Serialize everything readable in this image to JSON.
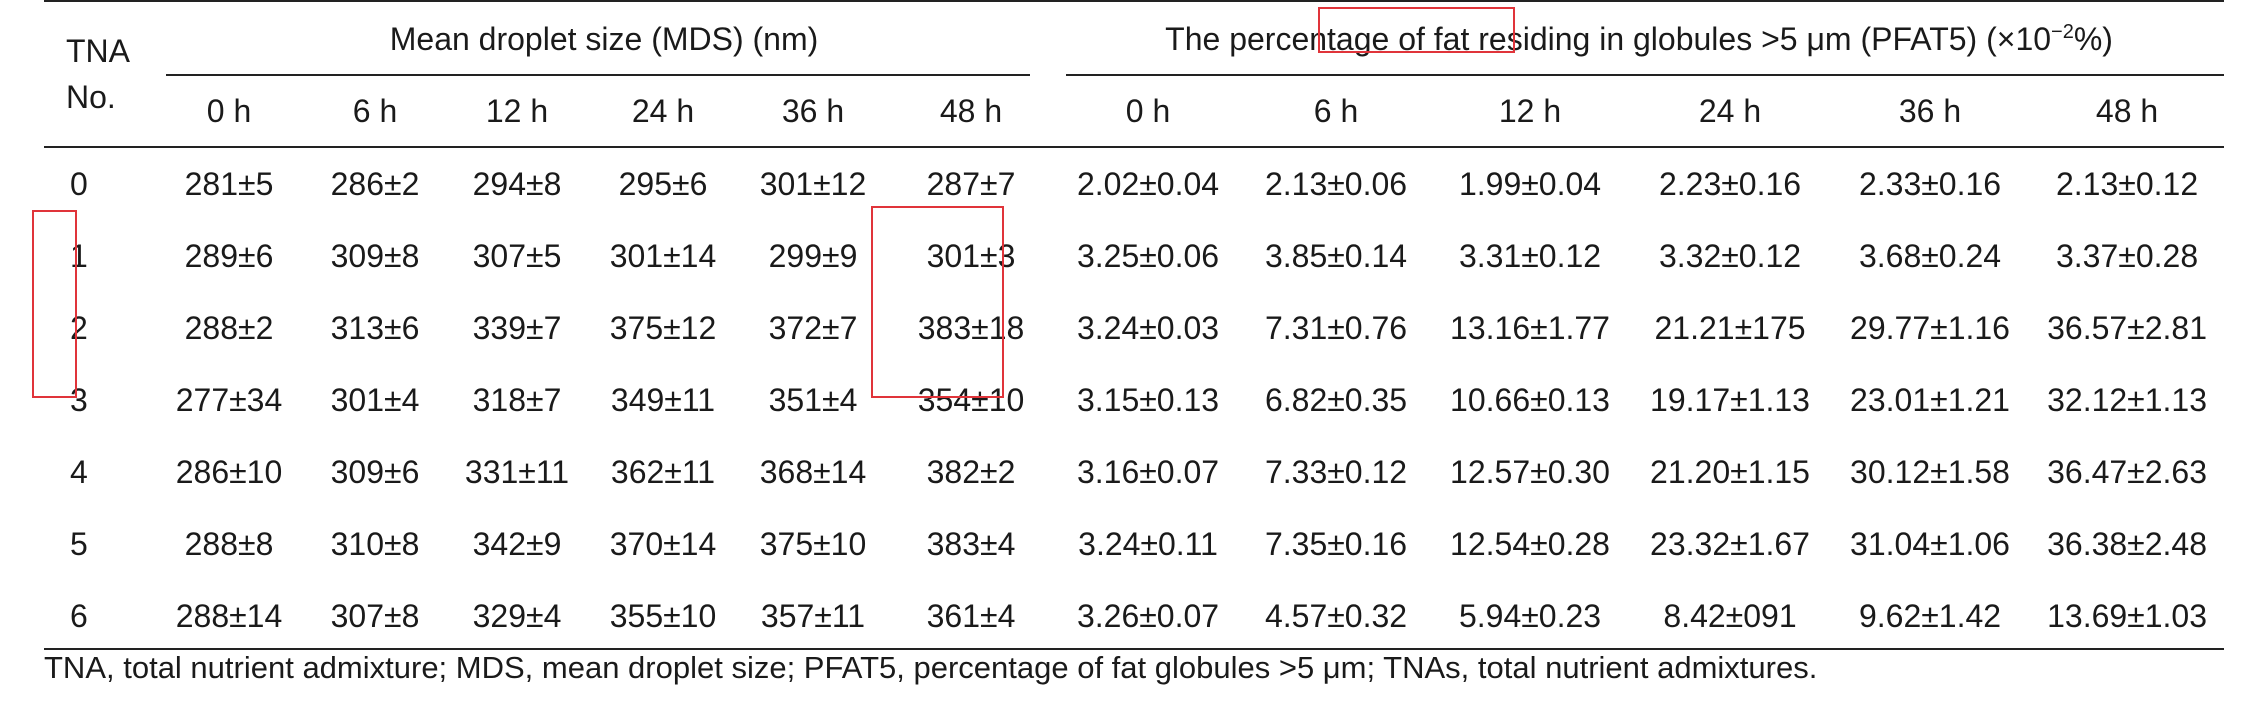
{
  "table": {
    "row_header_label_line1": "TNA",
    "row_header_label_line2": "No.",
    "group_mds": "Mean droplet size (MDS) (nm)",
    "group_pfat5_prefix": "The percentage of fat residing in globules >5 μm ",
    "group_pfat5_boxed_a": "(PFAT5) (×10",
    "group_pfat5_boxed_sup": "−2",
    "group_pfat5_boxed_b": "%)",
    "time_headers": [
      "0 h",
      "6 h",
      "12 h",
      "24 h",
      "36 h",
      "48 h"
    ],
    "rows": [
      {
        "no": "0",
        "mds": [
          "281±5",
          "286±2",
          "294±8",
          "295±6",
          "301±12",
          "287±7"
        ],
        "pfat5": [
          "2.02±0.04",
          "2.13±0.06",
          "1.99±0.04",
          "2.23±0.16",
          "2.33±0.16",
          "2.13±0.12"
        ]
      },
      {
        "no": "1",
        "mds": [
          "289±6",
          "309±8",
          "307±5",
          "301±14",
          "299±9",
          "301±3"
        ],
        "pfat5": [
          "3.25±0.06",
          "3.85±0.14",
          "3.31±0.12",
          "3.32±0.12",
          "3.68±0.24",
          "3.37±0.28"
        ]
      },
      {
        "no": "2",
        "mds": [
          "288±2",
          "313±6",
          "339±7",
          "375±12",
          "372±7",
          "383±18"
        ],
        "pfat5": [
          "3.24±0.03",
          "7.31±0.76",
          "13.16±1.77",
          "21.21±175",
          "29.77±1.16",
          "36.57±2.81"
        ]
      },
      {
        "no": "3",
        "mds": [
          "277±34",
          "301±4",
          "318±7",
          "349±11",
          "351±4",
          "354±10"
        ],
        "pfat5": [
          "3.15±0.13",
          "6.82±0.35",
          "10.66±0.13",
          "19.17±1.13",
          "23.01±1.21",
          "32.12±1.13"
        ]
      },
      {
        "no": "4",
        "mds": [
          "286±10",
          "309±6",
          "331±11",
          "362±11",
          "368±14",
          "382±2"
        ],
        "pfat5": [
          "3.16±0.07",
          "7.33±0.12",
          "12.57±0.30",
          "21.20±1.15",
          "30.12±1.58",
          "36.47±2.63"
        ]
      },
      {
        "no": "5",
        "mds": [
          "288±8",
          "310±8",
          "342±9",
          "370±14",
          "375±10",
          "383±4"
        ],
        "pfat5": [
          "3.24±0.11",
          "7.35±0.16",
          "12.54±0.28",
          "23.32±1.67",
          "31.04±1.06",
          "36.38±2.48"
        ]
      },
      {
        "no": "6",
        "mds": [
          "288±14",
          "307±8",
          "329±4",
          "355±10",
          "357±11",
          "361±4"
        ],
        "pfat5": [
          "3.26±0.07",
          "4.57±0.32",
          "5.94±0.23",
          "8.42±091",
          "9.62±1.42",
          "13.69±1.03"
        ]
      }
    ]
  },
  "footnote": "TNA, total nutrient admixture; MDS, mean droplet size; PFAT5, percentage of fat globules >5 μm; TNAs, total nutrient admixtures.",
  "highlight_color": "#e0343a"
}
